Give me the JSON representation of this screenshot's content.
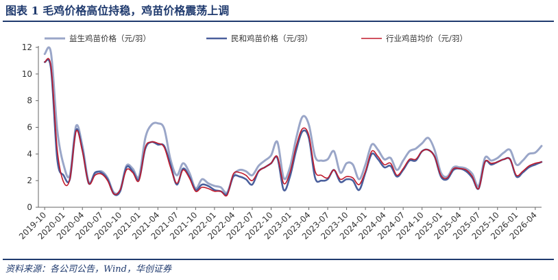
{
  "figure": {
    "title": "图表 1    毛鸡价格高位持稳，鸡苗价格震荡上调",
    "source": "资料来源：各公司公告，Wind，华创证券"
  },
  "chart_data": {
    "type": "line",
    "title": "",
    "xlabel": "",
    "ylabel": "",
    "ylim": [
      0,
      12
    ],
    "yticks": [
      0,
      2,
      4,
      6,
      8,
      10,
      12
    ],
    "grid": false,
    "legend": "top",
    "x_ticks": [
      "2019-10",
      "2020-01",
      "2020-04",
      "2020-07",
      "2020-10",
      "2021-01",
      "2021-04",
      "2021-07",
      "2021-10",
      "2022-01",
      "2022-04",
      "2022-07",
      "2022-10",
      "2023-01",
      "2023-04",
      "2023-07",
      "2023-10",
      "2024-01",
      "2024-04",
      "2024-07",
      "2024-10",
      "2025-01",
      "2025-04",
      "2025-07",
      "2025-10",
      "2026-01",
      "2026-04"
    ],
    "x_start": "2019-09",
    "x_end": "2026-05",
    "series": [
      {
        "name": "益生鸡苗价格（元/羽）",
        "color": "#9aa6c8",
        "points": [
          [
            "2019-10-01",
            11.5
          ],
          [
            "2019-11-01",
            11.6
          ],
          [
            "2019-12-01",
            5.8
          ],
          [
            "2020-01-01",
            3.2
          ],
          [
            "2020-02-01",
            2.4
          ],
          [
            "2020-03-01",
            6.1
          ],
          [
            "2020-04-01",
            4.6
          ],
          [
            "2020-05-01",
            1.9
          ],
          [
            "2020-06-01",
            2.5
          ],
          [
            "2020-07-01",
            2.7
          ],
          [
            "2020-08-01",
            2.2
          ],
          [
            "2020-09-01",
            1.1
          ],
          [
            "2020-10-01",
            1.3
          ],
          [
            "2020-11-01",
            3.1
          ],
          [
            "2020-12-01",
            2.9
          ],
          [
            "2021-01-01",
            2.3
          ],
          [
            "2021-02-01",
            5.2
          ],
          [
            "2021-03-01",
            6.2
          ],
          [
            "2021-04-01",
            6.3
          ],
          [
            "2021-05-01",
            5.9
          ],
          [
            "2021-06-01",
            3.6
          ],
          [
            "2021-07-01",
            2.4
          ],
          [
            "2021-08-01",
            3.3
          ],
          [
            "2021-09-01",
            2.6
          ],
          [
            "2021-10-01",
            1.4
          ],
          [
            "2021-11-01",
            2.1
          ],
          [
            "2021-12-01",
            1.8
          ],
          [
            "2022-01-01",
            1.6
          ],
          [
            "2022-02-01",
            1.5
          ],
          [
            "2022-03-01",
            1.1
          ],
          [
            "2022-04-01",
            2.4
          ],
          [
            "2022-05-01",
            2.8
          ],
          [
            "2022-06-01",
            2.7
          ],
          [
            "2022-07-01",
            2.4
          ],
          [
            "2022-08-01",
            3.1
          ],
          [
            "2022-09-01",
            3.5
          ],
          [
            "2022-10-01",
            3.9
          ],
          [
            "2022-11-01",
            4.9
          ],
          [
            "2022-12-01",
            2.2
          ],
          [
            "2023-01-01",
            3.0
          ],
          [
            "2023-02-01",
            5.2
          ],
          [
            "2023-03-01",
            6.8
          ],
          [
            "2023-04-01",
            6.2
          ],
          [
            "2023-05-01",
            3.8
          ],
          [
            "2023-06-01",
            3.5
          ],
          [
            "2023-07-01",
            3.6
          ],
          [
            "2023-08-01",
            4.2
          ],
          [
            "2023-09-01",
            2.6
          ],
          [
            "2023-10-01",
            3.3
          ],
          [
            "2023-11-01",
            3.2
          ],
          [
            "2023-12-01",
            2.1
          ],
          [
            "2024-01-01",
            3.2
          ],
          [
            "2024-02-01",
            4.7
          ],
          [
            "2024-03-01",
            4.3
          ],
          [
            "2024-04-01",
            3.6
          ],
          [
            "2024-05-01",
            3.7
          ],
          [
            "2024-06-01",
            2.8
          ],
          [
            "2024-07-01",
            3.5
          ],
          [
            "2024-08-01",
            4.2
          ],
          [
            "2024-09-01",
            4.4
          ],
          [
            "2024-10-01",
            4.8
          ],
          [
            "2024-11-01",
            5.2
          ],
          [
            "2024-12-01",
            4.3
          ],
          [
            "2025-01-01",
            2.6
          ],
          [
            "2025-02-01",
            2.3
          ],
          [
            "2025-03-01",
            3.0
          ],
          [
            "2025-04-01",
            3.0
          ],
          [
            "2025-05-01",
            2.9
          ],
          [
            "2025-06-01",
            2.5
          ],
          [
            "2025-07-01",
            1.6
          ],
          [
            "2025-08-01",
            3.7
          ],
          [
            "2025-09-01",
            3.5
          ],
          [
            "2025-10-01",
            3.7
          ],
          [
            "2025-11-01",
            4.1
          ],
          [
            "2025-12-01",
            4.3
          ],
          [
            "2026-01-01",
            3.2
          ],
          [
            "2026-02-01",
            3.5
          ],
          [
            "2026-03-01",
            4.0
          ],
          [
            "2026-04-01",
            4.1
          ],
          [
            "2026-05-01",
            4.6
          ]
        ]
      },
      {
        "name": "民和鸡苗价格（元/羽）",
        "color": "#4a5f9c",
        "points": [
          [
            "2019-10-01",
            10.9
          ],
          [
            "2019-11-01",
            10.4
          ],
          [
            "2019-12-01",
            3.6
          ],
          [
            "2020-01-01",
            2.4
          ],
          [
            "2020-02-01",
            2.1
          ],
          [
            "2020-03-01",
            5.8
          ],
          [
            "2020-04-01",
            4.3
          ],
          [
            "2020-05-01",
            1.8
          ],
          [
            "2020-06-01",
            2.6
          ],
          [
            "2020-07-01",
            2.6
          ],
          [
            "2020-08-01",
            2.1
          ],
          [
            "2020-09-01",
            1.0
          ],
          [
            "2020-10-01",
            1.2
          ],
          [
            "2020-11-01",
            3.0
          ],
          [
            "2020-12-01",
            2.7
          ],
          [
            "2021-01-01",
            2.1
          ],
          [
            "2021-02-01",
            4.4
          ],
          [
            "2021-03-01",
            4.9
          ],
          [
            "2021-04-01",
            4.7
          ],
          [
            "2021-05-01",
            4.6
          ],
          [
            "2021-06-01",
            3.2
          ],
          [
            "2021-07-01",
            1.7
          ],
          [
            "2021-08-01",
            2.9
          ],
          [
            "2021-09-01",
            2.3
          ],
          [
            "2021-10-01",
            1.3
          ],
          [
            "2021-11-01",
            1.7
          ],
          [
            "2021-12-01",
            1.6
          ],
          [
            "2022-01-01",
            1.3
          ],
          [
            "2022-02-01",
            1.2
          ],
          [
            "2022-03-01",
            1.0
          ],
          [
            "2022-04-01",
            2.3
          ],
          [
            "2022-05-01",
            2.3
          ],
          [
            "2022-06-01",
            2.1
          ],
          [
            "2022-07-01",
            1.7
          ],
          [
            "2022-08-01",
            2.7
          ],
          [
            "2022-09-01",
            3.0
          ],
          [
            "2022-10-01",
            3.3
          ],
          [
            "2022-11-01",
            3.7
          ],
          [
            "2022-12-01",
            1.3
          ],
          [
            "2023-01-01",
            2.3
          ],
          [
            "2023-02-01",
            4.3
          ],
          [
            "2023-03-01",
            5.7
          ],
          [
            "2023-04-01",
            5.2
          ],
          [
            "2023-05-01",
            2.2
          ],
          [
            "2023-06-01",
            2.0
          ],
          [
            "2023-07-01",
            2.1
          ],
          [
            "2023-08-01",
            2.8
          ],
          [
            "2023-09-01",
            1.9
          ],
          [
            "2023-10-01",
            2.1
          ],
          [
            "2023-11-01",
            2.0
          ],
          [
            "2023-12-01",
            1.3
          ],
          [
            "2024-01-01",
            2.6
          ],
          [
            "2024-02-01",
            4.0
          ],
          [
            "2024-03-01",
            3.6
          ],
          [
            "2024-04-01",
            3.0
          ],
          [
            "2024-05-01",
            3.1
          ],
          [
            "2024-06-01",
            2.3
          ],
          [
            "2024-07-01",
            2.8
          ],
          [
            "2024-08-01",
            3.5
          ],
          [
            "2024-09-01",
            3.5
          ],
          [
            "2024-10-01",
            4.2
          ],
          [
            "2024-11-01",
            4.3
          ],
          [
            "2024-12-01",
            3.8
          ],
          [
            "2025-01-01",
            2.3
          ],
          [
            "2025-02-01",
            2.1
          ],
          [
            "2025-03-01",
            2.8
          ],
          [
            "2025-04-01",
            2.9
          ],
          [
            "2025-05-01",
            2.7
          ],
          [
            "2025-06-01",
            2.2
          ],
          [
            "2025-07-01",
            1.4
          ],
          [
            "2025-08-01",
            3.4
          ],
          [
            "2025-09-01",
            3.2
          ],
          [
            "2025-10-01",
            3.4
          ],
          [
            "2025-11-01",
            3.6
          ],
          [
            "2025-12-01",
            3.6
          ],
          [
            "2026-01-01",
            2.3
          ],
          [
            "2026-02-01",
            2.6
          ],
          [
            "2026-03-01",
            3.0
          ],
          [
            "2026-04-01",
            3.2
          ],
          [
            "2026-05-01",
            3.4
          ]
        ]
      },
      {
        "name": "行业鸡苗均价（元/羽）",
        "color": "#c0182a",
        "points": [
          [
            "2019-10-01",
            10.9
          ],
          [
            "2019-11-01",
            10.6
          ],
          [
            "2019-12-01",
            4.3
          ],
          [
            "2020-01-01",
            1.9
          ],
          [
            "2020-02-01",
            2.1
          ],
          [
            "2020-03-01",
            5.7
          ],
          [
            "2020-04-01",
            4.2
          ],
          [
            "2020-05-01",
            1.8
          ],
          [
            "2020-06-01",
            2.4
          ],
          [
            "2020-07-01",
            2.5
          ],
          [
            "2020-08-01",
            2.0
          ],
          [
            "2020-09-01",
            1.0
          ],
          [
            "2020-10-01",
            1.3
          ],
          [
            "2020-11-01",
            2.8
          ],
          [
            "2020-12-01",
            2.6
          ],
          [
            "2021-01-01",
            2.0
          ],
          [
            "2021-02-01",
            4.5
          ],
          [
            "2021-03-01",
            4.9
          ],
          [
            "2021-04-01",
            4.8
          ],
          [
            "2021-05-01",
            4.5
          ],
          [
            "2021-06-01",
            3.0
          ],
          [
            "2021-07-01",
            1.8
          ],
          [
            "2021-08-01",
            2.8
          ],
          [
            "2021-09-01",
            2.2
          ],
          [
            "2021-10-01",
            1.2
          ],
          [
            "2021-11-01",
            1.5
          ],
          [
            "2021-12-01",
            1.4
          ],
          [
            "2022-01-01",
            1.2
          ],
          [
            "2022-02-01",
            1.2
          ],
          [
            "2022-03-01",
            0.9
          ],
          [
            "2022-04-01",
            2.5
          ],
          [
            "2022-05-01",
            2.6
          ],
          [
            "2022-06-01",
            2.4
          ],
          [
            "2022-07-01",
            2.0
          ],
          [
            "2022-08-01",
            2.7
          ],
          [
            "2022-09-01",
            3.0
          ],
          [
            "2022-10-01",
            3.3
          ],
          [
            "2022-11-01",
            3.8
          ],
          [
            "2022-12-01",
            1.8
          ],
          [
            "2023-01-01",
            2.6
          ],
          [
            "2023-02-01",
            4.6
          ],
          [
            "2023-03-01",
            5.9
          ],
          [
            "2023-04-01",
            5.4
          ],
          [
            "2023-05-01",
            2.7
          ],
          [
            "2023-06-01",
            2.4
          ],
          [
            "2023-07-01",
            2.2
          ],
          [
            "2023-08-01",
            2.8
          ],
          [
            "2023-09-01",
            2.1
          ],
          [
            "2023-10-01",
            2.3
          ],
          [
            "2023-11-01",
            2.2
          ],
          [
            "2023-12-01",
            1.7
          ],
          [
            "2024-01-01",
            2.7
          ],
          [
            "2024-02-01",
            4.2
          ],
          [
            "2024-03-01",
            3.8
          ],
          [
            "2024-04-01",
            3.2
          ],
          [
            "2024-05-01",
            3.3
          ],
          [
            "2024-06-01",
            2.4
          ],
          [
            "2024-07-01",
            2.9
          ],
          [
            "2024-08-01",
            3.6
          ],
          [
            "2024-09-01",
            3.6
          ],
          [
            "2024-10-01",
            4.2
          ],
          [
            "2024-11-01",
            4.3
          ],
          [
            "2024-12-01",
            3.8
          ],
          [
            "2025-01-01",
            2.4
          ],
          [
            "2025-02-01",
            2.2
          ],
          [
            "2025-03-01",
            2.9
          ],
          [
            "2025-04-01",
            2.9
          ],
          [
            "2025-05-01",
            2.8
          ],
          [
            "2025-06-01",
            2.3
          ],
          [
            "2025-07-01",
            1.4
          ],
          [
            "2025-08-01",
            3.4
          ],
          [
            "2025-09-01",
            3.3
          ],
          [
            "2025-10-01",
            3.4
          ],
          [
            "2025-11-01",
            3.6
          ],
          [
            "2025-12-01",
            3.6
          ],
          [
            "2026-01-01",
            2.4
          ],
          [
            "2026-02-01",
            2.7
          ],
          [
            "2026-03-01",
            3.1
          ],
          [
            "2026-04-01",
            3.3
          ],
          [
            "2026-05-01",
            3.4
          ]
        ]
      }
    ]
  }
}
